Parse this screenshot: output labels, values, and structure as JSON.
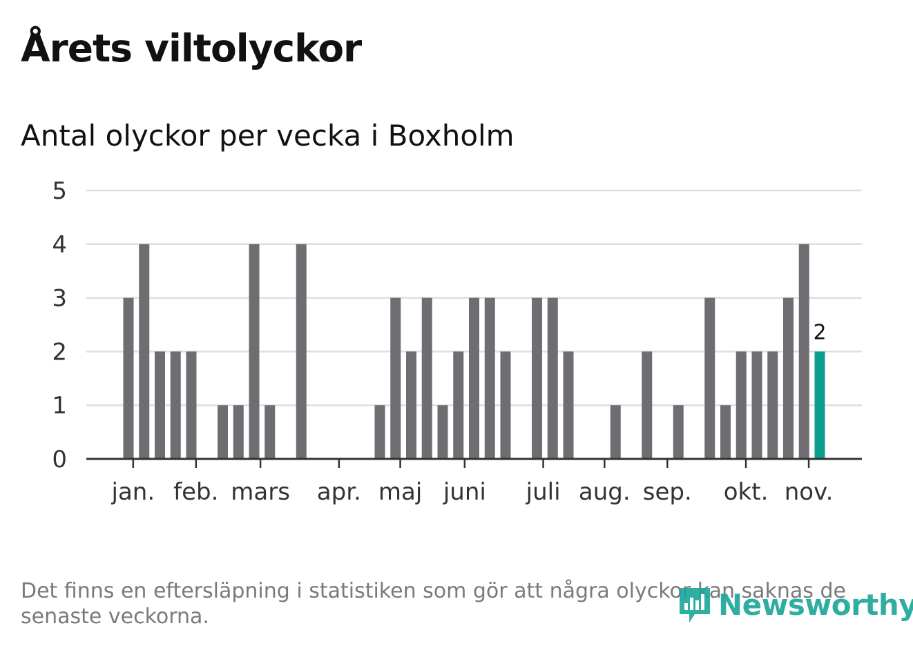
{
  "header": {
    "title": "Årets viltolyckor",
    "subtitle": "Antal olyckor per vecka i Boxholm"
  },
  "chart_data": {
    "type": "bar",
    "ylim": [
      0,
      5
    ],
    "yticks": [
      "0",
      "1",
      "2",
      "3",
      "4",
      "5"
    ],
    "grid": true,
    "month_labels": [
      "jan.",
      "feb.",
      "mars",
      "apr.",
      "maj",
      "juni",
      "juli",
      "aug.",
      "sep.",
      "okt.",
      "nov."
    ],
    "month_week_index": [
      0.3,
      4.3,
      8.4,
      13.4,
      17.3,
      21.4,
      26.4,
      30.3,
      34.3,
      39.3,
      43.3
    ],
    "weeks": [
      1,
      2,
      3,
      4,
      5,
      6,
      7,
      8,
      9,
      10,
      11,
      12,
      13,
      14,
      15,
      16,
      17,
      18,
      19,
      20,
      21,
      22,
      23,
      24,
      25,
      26,
      27,
      28,
      29,
      30,
      31,
      32,
      33,
      34,
      35,
      36,
      37,
      38,
      39,
      40,
      41,
      42,
      43,
      44,
      45
    ],
    "values": [
      3,
      4,
      2,
      2,
      2,
      0,
      1,
      1,
      4,
      1,
      0,
      4,
      0,
      0,
      0,
      0,
      1,
      3,
      2,
      3,
      1,
      2,
      3,
      3,
      2,
      0,
      3,
      3,
      2,
      0,
      0,
      1,
      0,
      2,
      0,
      1,
      0,
      3,
      1,
      2,
      2,
      2,
      3,
      4,
      2
    ],
    "highlight_last": true,
    "last_value_label": "2",
    "colors": {
      "bar": "#6d6d72",
      "highlight": "#0b9e91",
      "grid": "#dedede",
      "axis": "#333333"
    }
  },
  "footer": {
    "note": "Det finns en eftersläpning i statistiken som gör att några olyckor kan saknas de senaste veckorna.",
    "logo_text": "Newsworthy",
    "logo_icon": "bar-chart-speech-bubble-icon",
    "logo_color": "#1aa597"
  }
}
